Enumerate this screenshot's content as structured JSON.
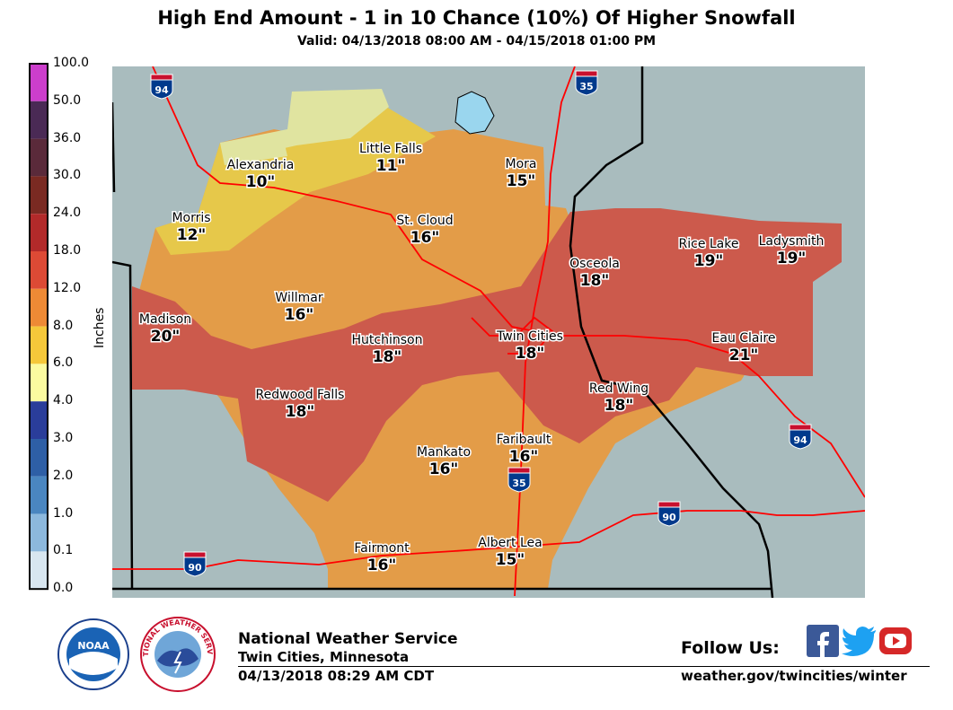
{
  "header": {
    "title": "High End Amount - 1 in 10 Chance (10%) Of Higher Snowfall",
    "valid": "Valid: 04/13/2018 08:00 AM - 04/15/2018 01:00 PM"
  },
  "legend": {
    "units": "Inches",
    "levels": [
      "100.0",
      "50.0",
      "36.0",
      "30.0",
      "24.0",
      "18.0",
      "12.0",
      "8.0",
      "6.0",
      "4.0",
      "3.0",
      "2.0",
      "1.0",
      "0.1",
      "0.0"
    ],
    "colors": [
      "#cc3ecc",
      "#4a2a55",
      "#5a2a3a",
      "#7a2a22",
      "#b22a2a",
      "#dd4a35",
      "#ee8a35",
      "#f5c83a",
      "#fbfba0",
      "#2a3d9a",
      "#2e5fa6",
      "#4a86c0",
      "#8cb8dd",
      "#d8e6f0",
      "#fafafa"
    ]
  },
  "map": {
    "colors": {
      "background": "#a9bcbe",
      "band_10_12": "#e6c84a",
      "band_6_8": "#e0e4a0",
      "band_12_18": "#e39c48",
      "band_18_24": "#cc5a4c",
      "water": "#9ad6ee",
      "roads": "#ff0000",
      "state_border": "#000000"
    },
    "cities": [
      {
        "name": "Alexandria",
        "amount": "10\""
      },
      {
        "name": "Little Falls",
        "amount": "11\""
      },
      {
        "name": "Mora",
        "amount": "15\""
      },
      {
        "name": "Morris",
        "amount": "12\""
      },
      {
        "name": "St. Cloud",
        "amount": "16\""
      },
      {
        "name": "Rice Lake",
        "amount": "19\""
      },
      {
        "name": "Ladysmith",
        "amount": "19\""
      },
      {
        "name": "Osceola",
        "amount": "18\""
      },
      {
        "name": "Willmar",
        "amount": "16\""
      },
      {
        "name": "Madison",
        "amount": "20\""
      },
      {
        "name": "Hutchinson",
        "amount": "18\""
      },
      {
        "name": "Twin Cities",
        "amount": "18\""
      },
      {
        "name": "Eau Claire",
        "amount": "21\""
      },
      {
        "name": "Red Wing",
        "amount": "18\""
      },
      {
        "name": "Redwood Falls",
        "amount": "18\""
      },
      {
        "name": "Faribault",
        "amount": "16\""
      },
      {
        "name": "Mankato",
        "amount": "16\""
      },
      {
        "name": "Fairmont",
        "amount": "16\""
      },
      {
        "name": "Albert Lea",
        "amount": "15\""
      }
    ],
    "interstates": [
      "94",
      "35",
      "94",
      "35",
      "90",
      "90"
    ]
  },
  "footer": {
    "org": "National Weather Service",
    "office": "Twin Cities, Minnesota",
    "issued": "04/13/2018 08:29 AM CDT",
    "follow": "Follow Us:",
    "url": "weather.gov/twincities/winter",
    "noaa_logo_text": "NOAA",
    "nws_logo_text": "NATIONAL WEATHER SERVICE",
    "social_icons": [
      "facebook-icon",
      "twitter-icon",
      "youtube-icon"
    ]
  }
}
